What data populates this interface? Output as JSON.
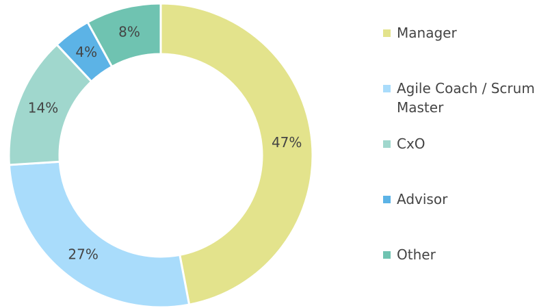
{
  "chart_data": {
    "type": "pie",
    "categories": [
      "Manager",
      "Agile Coach / Scrum Master",
      "CxO",
      "Advisor",
      "Other"
    ],
    "values": [
      47,
      27,
      14,
      4,
      8
    ],
    "value_labels": [
      "47%",
      "27%",
      "14%",
      "4%",
      "8%"
    ],
    "colors": [
      "#e3e38c",
      "#a9dcfb",
      "#a0d7cd",
      "#5cb3e6",
      "#6fc3b1"
    ],
    "legend": "right"
  }
}
